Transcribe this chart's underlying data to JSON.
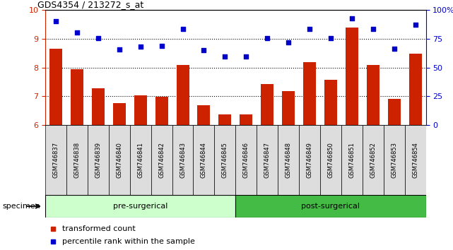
{
  "title": "GDS4354 / 213272_s_at",
  "categories": [
    "GSM746837",
    "GSM746838",
    "GSM746839",
    "GSM746840",
    "GSM746841",
    "GSM746842",
    "GSM746843",
    "GSM746844",
    "GSM746845",
    "GSM746846",
    "GSM746847",
    "GSM746848",
    "GSM746849",
    "GSM746850",
    "GSM746851",
    "GSM746852",
    "GSM746853",
    "GSM746854"
  ],
  "bar_values": [
    8.65,
    7.95,
    7.28,
    6.76,
    7.02,
    6.98,
    8.08,
    6.68,
    6.38,
    6.38,
    7.42,
    7.18,
    8.18,
    7.58,
    9.38,
    8.08,
    6.92,
    8.48
  ],
  "scatter_values": [
    9.62,
    9.22,
    9.02,
    8.62,
    8.72,
    8.75,
    9.35,
    8.6,
    8.38,
    8.38,
    9.02,
    8.88,
    9.35,
    9.02,
    9.72,
    9.35,
    8.65,
    9.48
  ],
  "bar_color": "#cc2200",
  "scatter_color": "#0000cc",
  "ylim_left": [
    6,
    10
  ],
  "ylim_right": [
    0,
    100
  ],
  "yticks_left": [
    6,
    7,
    8,
    9,
    10
  ],
  "yticks_right": [
    0,
    25,
    50,
    75,
    100
  ],
  "ytick_labels_right": [
    "0",
    "25",
    "50",
    "75",
    "100%"
  ],
  "pre_surgical_count": 9,
  "post_surgical_count": 9,
  "pre_label": "pre-surgerical",
  "post_label": "post-surgerical",
  "specimen_label": "specimen",
  "legend_bar_label": "transformed count",
  "legend_scatter_label": "percentile rank within the sample",
  "pre_color": "#ccffcc",
  "post_color": "#44bb44",
  "tick_bg_color": "#dddddd",
  "bar_bottom": 6
}
